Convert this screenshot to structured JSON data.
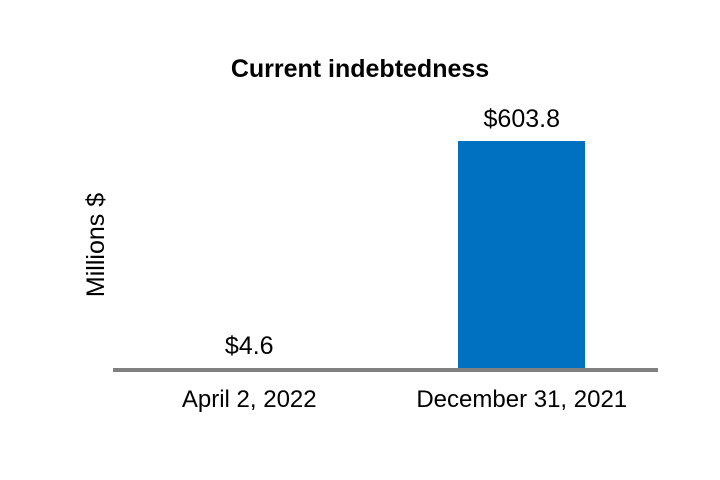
{
  "chart_data": {
    "type": "bar",
    "title": "Current indebtedness",
    "ylabel": "Millions $",
    "xlabel": "",
    "categories": [
      "April 2, 2022",
      "December 31, 2021"
    ],
    "values": [
      4.6,
      603.8
    ],
    "data_labels": [
      "$4.6",
      "$603.8"
    ],
    "ylim": [
      0,
      603.8
    ],
    "grid": false,
    "legend": false,
    "value_axis_visible": false,
    "bar_color": "#0070C0",
    "axis_line_color": "#808080",
    "text_color": "#000000",
    "background_color": "#FFFFFF"
  }
}
